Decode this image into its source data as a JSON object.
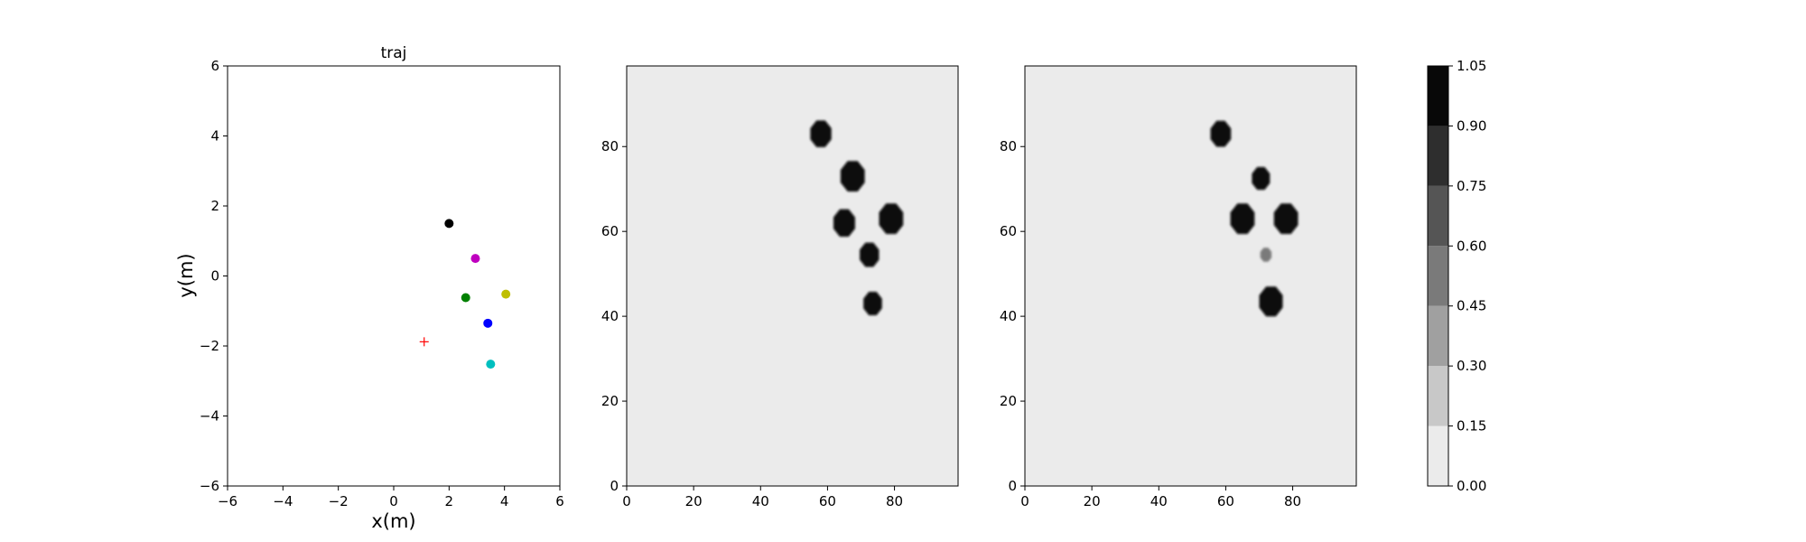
{
  "chart_data": [
    {
      "type": "scatter",
      "title": "traj",
      "xlabel": "x(m)",
      "ylabel": "y(m)",
      "xlim": [
        -6,
        6
      ],
      "ylim": [
        -6,
        6
      ],
      "xticks": [
        -6,
        -4,
        -2,
        0,
        2,
        4,
        6
      ],
      "yticks": [
        -6,
        -4,
        -2,
        0,
        2,
        4,
        6
      ],
      "points": [
        {
          "x": 2.0,
          "y": 1.5,
          "color": "#000000",
          "marker": "dot"
        },
        {
          "x": 2.95,
          "y": 0.5,
          "color": "#bf00bf",
          "marker": "dot"
        },
        {
          "x": 4.05,
          "y": -0.52,
          "color": "#bfbf00",
          "marker": "dot"
        },
        {
          "x": 2.6,
          "y": -0.62,
          "color": "#008000",
          "marker": "dot"
        },
        {
          "x": 3.4,
          "y": -1.35,
          "color": "#0000ff",
          "marker": "dot"
        },
        {
          "x": 3.5,
          "y": -2.52,
          "color": "#00bfbf",
          "marker": "dot"
        },
        {
          "x": 1.1,
          "y": -1.88,
          "color": "#ff0000",
          "marker": "plus"
        }
      ]
    },
    {
      "type": "heatmap",
      "xlim": [
        0,
        99
      ],
      "ylim": [
        0,
        99
      ],
      "xticks": [
        0,
        20,
        40,
        60,
        80
      ],
      "yticks": [
        0,
        20,
        40,
        60,
        80
      ],
      "background_level": 0.06,
      "blobs": [
        {
          "x": 58,
          "y": 83,
          "r": 3.4,
          "level": 1.0
        },
        {
          "x": 67.5,
          "y": 73,
          "r": 3.9,
          "level": 1.0
        },
        {
          "x": 65,
          "y": 62,
          "r": 3.5,
          "level": 1.0
        },
        {
          "x": 79,
          "y": 63,
          "r": 3.9,
          "level": 1.0
        },
        {
          "x": 72.5,
          "y": 54.5,
          "r": 3.1,
          "level": 1.0
        },
        {
          "x": 73.5,
          "y": 43,
          "r": 3.0,
          "level": 1.0
        }
      ]
    },
    {
      "type": "heatmap",
      "xlim": [
        0,
        99
      ],
      "ylim": [
        0,
        99
      ],
      "xticks": [
        0,
        20,
        40,
        60,
        80
      ],
      "yticks": [
        0,
        20,
        40,
        60,
        80
      ],
      "background_level": 0.06,
      "blobs": [
        {
          "x": 58.5,
          "y": 83,
          "r": 3.3,
          "level": 1.0
        },
        {
          "x": 70.5,
          "y": 72.5,
          "r": 2.9,
          "level": 0.95
        },
        {
          "x": 65,
          "y": 63,
          "r": 3.9,
          "level": 1.0
        },
        {
          "x": 78,
          "y": 63,
          "r": 3.9,
          "level": 1.0
        },
        {
          "x": 72,
          "y": 54.5,
          "r": 1.8,
          "level": 0.55
        },
        {
          "x": 73.5,
          "y": 43.5,
          "r": 3.8,
          "level": 1.0
        }
      ]
    }
  ],
  "colorbar": {
    "levels": [
      0.0,
      0.15,
      0.3,
      0.45,
      0.6,
      0.75,
      0.9,
      1.05
    ],
    "tick_labels": [
      "0.00",
      "0.15",
      "0.30",
      "0.45",
      "0.60",
      "0.75",
      "0.90",
      "1.05"
    ],
    "band_colors": [
      "#ebebeb",
      "#c8c8c8",
      "#a0a0a0",
      "#7a7a7a",
      "#555555",
      "#2e2e2e",
      "#080808"
    ]
  }
}
